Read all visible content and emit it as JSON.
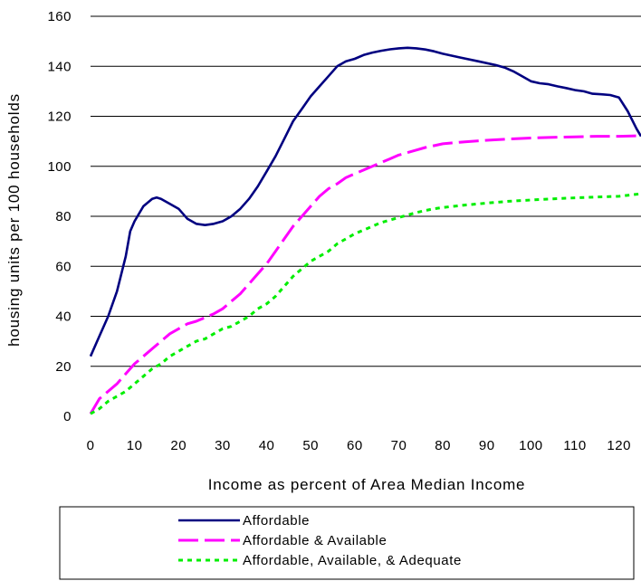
{
  "chart_data": {
    "type": "line",
    "xlabel": "Income as percent of Area Median Income",
    "ylabel": "housing units per 100 households",
    "xlim": [
      0,
      125
    ],
    "ylim": [
      0,
      160
    ],
    "x_ticks": [
      0,
      10,
      20,
      30,
      40,
      50,
      60,
      70,
      80,
      90,
      100,
      110,
      120
    ],
    "y_ticks": [
      0,
      20,
      40,
      60,
      80,
      100,
      120,
      140,
      160
    ],
    "grid": "horizontal",
    "legend_position": "bottom",
    "series": [
      {
        "name": "Affordable",
        "color": "#000080",
        "style": "solid",
        "points": [
          [
            0,
            24
          ],
          [
            2,
            32
          ],
          [
            4,
            40
          ],
          [
            6,
            50
          ],
          [
            8,
            64
          ],
          [
            9,
            74
          ],
          [
            10,
            78
          ],
          [
            12,
            84
          ],
          [
            14,
            87
          ],
          [
            15,
            87.5
          ],
          [
            16,
            87
          ],
          [
            18,
            85
          ],
          [
            20,
            83
          ],
          [
            22,
            79
          ],
          [
            24,
            77
          ],
          [
            26,
            76.5
          ],
          [
            28,
            77
          ],
          [
            30,
            78
          ],
          [
            32,
            80
          ],
          [
            34,
            83
          ],
          [
            36,
            87
          ],
          [
            38,
            92
          ],
          [
            40,
            98
          ],
          [
            42,
            104
          ],
          [
            44,
            111
          ],
          [
            46,
            118
          ],
          [
            48,
            123
          ],
          [
            50,
            128
          ],
          [
            52,
            132
          ],
          [
            54,
            136
          ],
          [
            56,
            140
          ],
          [
            58,
            142
          ],
          [
            60,
            143
          ],
          [
            62,
            144.5
          ],
          [
            64,
            145.5
          ],
          [
            66,
            146.2
          ],
          [
            68,
            146.8
          ],
          [
            70,
            147.2
          ],
          [
            72,
            147.4
          ],
          [
            74,
            147.2
          ],
          [
            76,
            146.7
          ],
          [
            78,
            146
          ],
          [
            80,
            145
          ],
          [
            84,
            143.5
          ],
          [
            88,
            142
          ],
          [
            92,
            140.5
          ],
          [
            94,
            139.5
          ],
          [
            96,
            138
          ],
          [
            98,
            136
          ],
          [
            100,
            134
          ],
          [
            102,
            133.2
          ],
          [
            104,
            132.8
          ],
          [
            106,
            132
          ],
          [
            108,
            131.3
          ],
          [
            110,
            130.5
          ],
          [
            112,
            130
          ],
          [
            114,
            129
          ],
          [
            116,
            128.8
          ],
          [
            118,
            128.5
          ],
          [
            120,
            127.5
          ],
          [
            122,
            122
          ],
          [
            124,
            115
          ],
          [
            125,
            112
          ]
        ]
      },
      {
        "name": "Affordable & Available",
        "color": "#ff00ff",
        "style": "dashed",
        "points": [
          [
            0,
            1
          ],
          [
            2,
            7
          ],
          [
            4,
            10
          ],
          [
            6,
            13
          ],
          [
            8,
            17
          ],
          [
            10,
            21
          ],
          [
            12,
            24
          ],
          [
            14,
            27
          ],
          [
            16,
            30
          ],
          [
            18,
            33
          ],
          [
            20,
            35
          ],
          [
            22,
            37
          ],
          [
            24,
            38
          ],
          [
            26,
            39.5
          ],
          [
            28,
            41
          ],
          [
            30,
            43
          ],
          [
            32,
            46
          ],
          [
            34,
            49
          ],
          [
            36,
            53
          ],
          [
            38,
            57
          ],
          [
            40,
            61
          ],
          [
            42,
            66
          ],
          [
            44,
            71
          ],
          [
            46,
            76
          ],
          [
            48,
            80
          ],
          [
            50,
            84
          ],
          [
            52,
            88
          ],
          [
            54,
            91
          ],
          [
            56,
            93
          ],
          [
            58,
            95.5
          ],
          [
            60,
            97
          ],
          [
            62,
            98.5
          ],
          [
            64,
            100
          ],
          [
            66,
            101.5
          ],
          [
            68,
            103
          ],
          [
            70,
            104.5
          ],
          [
            72,
            105.5
          ],
          [
            74,
            106.5
          ],
          [
            76,
            107.5
          ],
          [
            80,
            109
          ],
          [
            85,
            109.8
          ],
          [
            90,
            110.4
          ],
          [
            95,
            110.9
          ],
          [
            100,
            111.3
          ],
          [
            105,
            111.6
          ],
          [
            110,
            111.8
          ],
          [
            115,
            112
          ],
          [
            120,
            112
          ],
          [
            125,
            112.2
          ]
        ]
      },
      {
        "name": "Affordable, Available, & Adequate",
        "color": "#00ee00",
        "style": "dotted",
        "points": [
          [
            0,
            1
          ],
          [
            2,
            3
          ],
          [
            4,
            6
          ],
          [
            6,
            8
          ],
          [
            8,
            10
          ],
          [
            10,
            13
          ],
          [
            12,
            16
          ],
          [
            14,
            19
          ],
          [
            16,
            21
          ],
          [
            18,
            24
          ],
          [
            20,
            26
          ],
          [
            22,
            28
          ],
          [
            24,
            30
          ],
          [
            26,
            31
          ],
          [
            28,
            33
          ],
          [
            30,
            35
          ],
          [
            32,
            36
          ],
          [
            34,
            38
          ],
          [
            36,
            40
          ],
          [
            38,
            43
          ],
          [
            40,
            45
          ],
          [
            42,
            48
          ],
          [
            44,
            52
          ],
          [
            46,
            56
          ],
          [
            48,
            59
          ],
          [
            50,
            62
          ],
          [
            52,
            64
          ],
          [
            54,
            66
          ],
          [
            56,
            69
          ],
          [
            58,
            71
          ],
          [
            60,
            73
          ],
          [
            62,
            74.5
          ],
          [
            64,
            76
          ],
          [
            66,
            77.5
          ],
          [
            68,
            78.5
          ],
          [
            70,
            79.5
          ],
          [
            72,
            80.5
          ],
          [
            74,
            81.5
          ],
          [
            76,
            82.3
          ],
          [
            78,
            83
          ],
          [
            80,
            83.5
          ],
          [
            85,
            84.5
          ],
          [
            90,
            85.3
          ],
          [
            95,
            86
          ],
          [
            100,
            86.5
          ],
          [
            105,
            87
          ],
          [
            110,
            87.4
          ],
          [
            115,
            87.7
          ],
          [
            120,
            88
          ],
          [
            125,
            89
          ]
        ]
      }
    ]
  }
}
